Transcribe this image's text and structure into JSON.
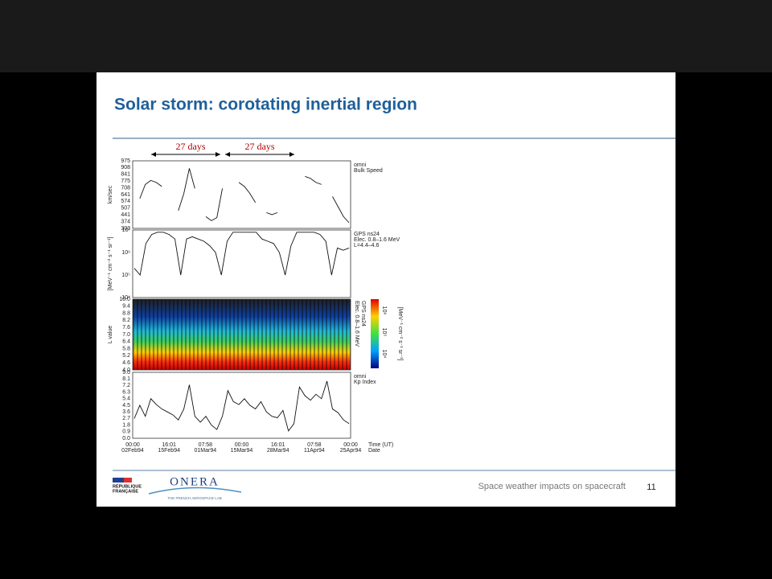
{
  "slide": {
    "title": "Solar storm: corotating inertial region",
    "footer_text": "Space weather impacts on spacecraft",
    "page_number": "11"
  },
  "logos": {
    "republic": [
      "RÉPUBLIQUE",
      "FRANÇAISE"
    ],
    "onera": "ONERA",
    "onera_tagline": "THE FRENCH AEROSPACE LAB"
  },
  "figure": {
    "periods": [
      "27 days",
      "27 days"
    ],
    "panels": [
      {
        "y_label": "km/sec",
        "ticks": [
          "975",
          "908",
          "841",
          "775",
          "708",
          "641",
          "574",
          "507",
          "441",
          "374",
          "303"
        ],
        "notes": [
          "omni",
          "Bulk Speed"
        ],
        "ylim": [
          303,
          975
        ],
        "values": [
          null,
          600,
          740,
          780,
          760,
          720,
          null,
          null,
          480,
          650,
          900,
          700,
          null,
          420,
          380,
          410,
          700,
          null,
          null,
          760,
          720,
          650,
          560,
          null,
          460,
          440,
          460,
          null,
          null,
          null,
          null,
          820,
          800,
          760,
          740,
          null,
          620,
          520,
          420,
          360
        ]
      },
      {
        "y_label": "[MeV⁻¹ cm⁻² s⁻¹ sr⁻¹]",
        "ticks": [
          "10⁷",
          "10⁶",
          "10⁵",
          "10⁴"
        ],
        "notes": [
          "GPS ns24",
          "Elec. 0.8–1.6 MeV",
          "L=4.4–4.6"
        ],
        "ylim": [
          4,
          7
        ],
        "values": [
          5.3,
          5.0,
          6.4,
          6.8,
          6.9,
          6.9,
          6.8,
          6.6,
          5.0,
          6.6,
          6.7,
          6.6,
          6.5,
          6.3,
          6.0,
          5.0,
          6.5,
          6.9,
          6.9,
          6.9,
          6.9,
          6.9,
          6.6,
          6.5,
          6.4,
          6.0,
          5.0,
          6.3,
          6.9,
          6.9,
          6.9,
          6.9,
          6.8,
          6.5,
          5.0,
          6.2,
          6.1,
          6.2
        ]
      },
      {
        "y_label": "L value",
        "ticks": [
          "10.0",
          "9.4",
          "8.8",
          "8.2",
          "7.6",
          "7.0",
          "6.4",
          "5.8",
          "5.2",
          "4.6",
          "4.0"
        ],
        "notes": [
          "GPS ns24",
          "Elec. 0.8–1.6 MeV"
        ],
        "colorbar_ticks": [
          "10⁶",
          "10⁵",
          "10⁴"
        ],
        "colorbar_label": "[MeV⁻¹ cm⁻² s⁻¹ sr⁻¹]"
      },
      {
        "y_label": "",
        "ticks": [
          "9.0",
          "8.1",
          "7.2",
          "6.3",
          "5.4",
          "4.5",
          "3.6",
          "2.7",
          "1.8",
          "0.9",
          "0.0"
        ],
        "notes": [
          "omni",
          "Kp Index"
        ],
        "ylim": [
          0,
          9
        ],
        "values": [
          2.7,
          4.5,
          3,
          5.4,
          4.6,
          4,
          3.6,
          3.2,
          2.5,
          4,
          7.3,
          3,
          2.2,
          3,
          1.8,
          1.2,
          3,
          6.5,
          5,
          4.6,
          5.4,
          4.5,
          4,
          5,
          3.6,
          3,
          2.8,
          3.8,
          1,
          2,
          7,
          5.8,
          5.2,
          6,
          5.4,
          7.8,
          4,
          3.5,
          2.5,
          2
        ]
      }
    ],
    "x_ticks": [
      {
        "time": "00:00",
        "date": "02Feb94"
      },
      {
        "time": "16:01",
        "date": "15Feb94"
      },
      {
        "time": "07:58",
        "date": "01Mar94"
      },
      {
        "time": "00:00",
        "date": "15Mar94"
      },
      {
        "time": "16:01",
        "date": "28Mar94"
      },
      {
        "time": "07:58",
        "date": "11Apr94"
      },
      {
        "time": "00:00",
        "date": "25Apr94"
      }
    ],
    "x_labels": [
      "Time (UT)",
      "Date"
    ]
  }
}
